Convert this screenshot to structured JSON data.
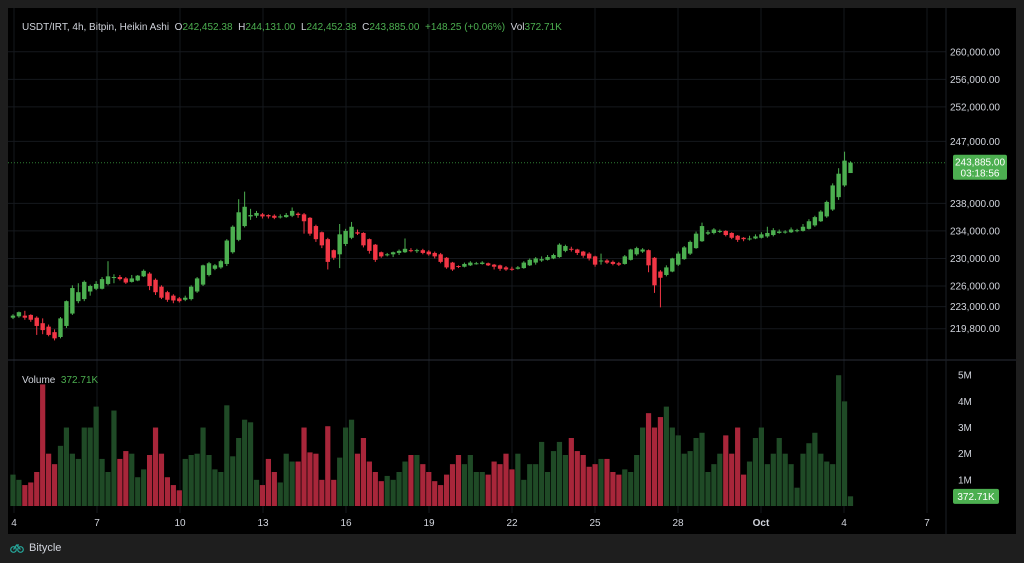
{
  "header": {
    "symbol": "USDT/IRT, 4h, Bitpin, Heikin Ashi",
    "open_label": "O",
    "open": "242,452.38",
    "high_label": "H",
    "high": "244,131.00",
    "low_label": "L",
    "low": "242,452.38",
    "close_label": "C",
    "close": "243,885.00",
    "change": "+148.25 (+0.06%)",
    "vol_label": "Vol",
    "vol": "372.71K"
  },
  "volume_pane": {
    "label": "Volume",
    "value": "372.71K"
  },
  "price_axis": [
    "260,000.00",
    "256,000.00",
    "252,000.00",
    "247,000.00",
    "238,000.00",
    "234,000.00",
    "230,000.00",
    "226,000.00",
    "223,000.00",
    "219,800.00"
  ],
  "last_price": {
    "price": "243,885.00",
    "countdown": "03:18:56"
  },
  "volume_axis": [
    "5M",
    "4M",
    "3M",
    "2M",
    "1M"
  ],
  "volume_badge": "372.71K",
  "time_axis": [
    "4",
    "7",
    "10",
    "13",
    "16",
    "19",
    "22",
    "25",
    "28",
    "Oct",
    "4",
    "7"
  ],
  "footer": {
    "brand": "Bitycle"
  },
  "colors": {
    "up": "#4caf50",
    "down": "#f23645",
    "vol_up": "#1f4a26",
    "vol_down": "#a8263a",
    "background": "#000000"
  },
  "chart_data": {
    "type": "candlestick",
    "style": "Heikin Ashi",
    "interval": "4h",
    "y_range": [
      217000,
      262000
    ],
    "volume_range": [
      0,
      5200000
    ],
    "x_ticks": [
      "4",
      "7",
      "10",
      "13",
      "16",
      "19",
      "22",
      "25",
      "28",
      "Oct",
      "4",
      "7"
    ],
    "candles": [
      [
        221400,
        221700,
        221200,
        221900,
        1200000
      ],
      [
        221600,
        222200,
        221400,
        222300,
        1000000
      ],
      [
        221700,
        221400,
        221100,
        222400,
        800000
      ],
      [
        221800,
        221100,
        220800,
        221900,
        900000
      ],
      [
        221400,
        220200,
        218900,
        221600,
        1300000
      ],
      [
        220600,
        219600,
        219000,
        221300,
        4650000
      ],
      [
        220100,
        218900,
        218700,
        220400,
        2000000
      ],
      [
        219300,
        218400,
        218100,
        219700,
        1600000
      ],
      [
        218600,
        221300,
        218400,
        221500,
        2300000
      ],
      [
        220200,
        223800,
        219900,
        223900,
        3000000
      ],
      [
        222000,
        225700,
        221800,
        226100,
        2000000
      ],
      [
        223800,
        225100,
        223500,
        226400,
        1800000
      ],
      [
        224100,
        226600,
        223800,
        226800,
        3000000
      ],
      [
        225200,
        226000,
        224600,
        226200,
        3000000
      ],
      [
        225600,
        226300,
        225400,
        226700,
        3800000
      ],
      [
        225600,
        227000,
        225500,
        227300,
        1800000
      ],
      [
        226300,
        227400,
        226100,
        229600,
        1300000
      ],
      [
        227300,
        227300,
        226400,
        227700,
        3650000
      ],
      [
        227300,
        227000,
        226800,
        227600,
        1800000
      ],
      [
        227100,
        226500,
        226300,
        227300,
        2100000
      ],
      [
        226600,
        227100,
        226500,
        227600,
        2000000
      ],
      [
        226800,
        227500,
        226700,
        227600,
        1100000
      ],
      [
        227400,
        228200,
        227300,
        228400,
        1400000
      ],
      [
        227800,
        226000,
        225400,
        228000,
        1950000
      ],
      [
        226900,
        225100,
        224700,
        227100,
        3000000
      ],
      [
        225900,
        224300,
        224100,
        226100,
        2000000
      ],
      [
        225100,
        224000,
        223700,
        225300,
        1100000
      ],
      [
        224600,
        223900,
        223500,
        224800,
        800000
      ],
      [
        224200,
        223800,
        223600,
        224400,
        600000
      ],
      [
        224000,
        224300,
        223800,
        224600,
        1800000
      ],
      [
        224100,
        225900,
        223900,
        226100,
        1950000
      ],
      [
        225200,
        227100,
        225000,
        227300,
        2000000
      ],
      [
        226200,
        229000,
        226000,
        229100,
        3000000
      ],
      [
        227600,
        229300,
        227400,
        229500,
        1950000
      ],
      [
        228500,
        229000,
        228300,
        229200,
        1400000
      ],
      [
        228700,
        229600,
        228500,
        229800,
        1300000
      ],
      [
        229200,
        232600,
        228900,
        232800,
        3850000
      ],
      [
        230900,
        234600,
        230700,
        234800,
        1900000
      ],
      [
        232700,
        236700,
        232500,
        238600,
        2600000
      ],
      [
        234700,
        237500,
        234500,
        239700,
        3300000
      ],
      [
        236100,
        236300,
        235600,
        237200,
        3200000
      ],
      [
        236200,
        236600,
        235900,
        236900,
        1000000
      ],
      [
        236400,
        236100,
        235800,
        236600,
        800000
      ],
      [
        236300,
        236100,
        235800,
        236400,
        1800000
      ],
      [
        236200,
        235900,
        235700,
        236400,
        1300000
      ],
      [
        236000,
        236100,
        235800,
        236400,
        900000
      ],
      [
        236000,
        236300,
        235900,
        236600,
        2000000
      ],
      [
        236200,
        236900,
        236000,
        237400,
        1700000
      ],
      [
        236500,
        236300,
        235900,
        236700,
        1700000
      ],
      [
        236400,
        235400,
        233600,
        236600,
        3000000
      ],
      [
        235900,
        233600,
        233300,
        236000,
        2050000
      ],
      [
        234700,
        232800,
        232400,
        234900,
        2000000
      ],
      [
        233800,
        231900,
        231500,
        233900,
        1000000
      ],
      [
        232800,
        229500,
        228400,
        233000,
        3050000
      ],
      [
        231200,
        230100,
        229800,
        231300,
        1000000
      ],
      [
        230600,
        233500,
        228600,
        235000,
        1850000
      ],
      [
        232100,
        234000,
        231800,
        234300,
        3000000
      ],
      [
        233000,
        234600,
        232800,
        235300,
        3300000
      ],
      [
        233800,
        233600,
        233400,
        234200,
        2000000
      ],
      [
        233700,
        231900,
        231600,
        233800,
        2600000
      ],
      [
        232800,
        231100,
        230700,
        232900,
        1700000
      ],
      [
        232000,
        229800,
        229500,
        232100,
        1300000
      ],
      [
        230900,
        230300,
        230100,
        231000,
        950000
      ],
      [
        230600,
        230600,
        230300,
        230800,
        1150000
      ],
      [
        230600,
        230900,
        230200,
        231000,
        1000000
      ],
      [
        230800,
        231100,
        230500,
        231300,
        1300000
      ],
      [
        230900,
        231400,
        230800,
        232900,
        1700000
      ],
      [
        231200,
        231100,
        230900,
        231500,
        1950000
      ],
      [
        231100,
        231200,
        230800,
        231400,
        1950000
      ],
      [
        231200,
        230800,
        230600,
        231400,
        1600000
      ],
      [
        231000,
        230600,
        230400,
        231200,
        1300000
      ],
      [
        230800,
        230300,
        230000,
        231000,
        950000
      ],
      [
        230600,
        229500,
        229300,
        230800,
        800000
      ],
      [
        230100,
        228700,
        228500,
        230200,
        1200000
      ],
      [
        229400,
        228400,
        228200,
        229500,
        1600000
      ],
      [
        228900,
        228800,
        228600,
        229000,
        1950000
      ],
      [
        228800,
        229200,
        228700,
        229400,
        1600000
      ],
      [
        229000,
        229400,
        228900,
        229600,
        1950000
      ],
      [
        229200,
        229300,
        229100,
        229500,
        1300000
      ],
      [
        229200,
        229400,
        229100,
        229600,
        1300000
      ],
      [
        229300,
        229000,
        228900,
        229400,
        1200000
      ],
      [
        229100,
        228800,
        228400,
        229200,
        1700000
      ],
      [
        229000,
        228500,
        228200,
        229100,
        1600000
      ],
      [
        228700,
        228400,
        228200,
        228900,
        2000000
      ],
      [
        228500,
        228400,
        228200,
        228800,
        1400000
      ],
      [
        228500,
        228700,
        228400,
        228900,
        2000000
      ],
      [
        228600,
        229400,
        228500,
        229600,
        1000000
      ],
      [
        229000,
        229800,
        228900,
        230000,
        1600000
      ],
      [
        229400,
        230000,
        229100,
        230200,
        1600000
      ],
      [
        229700,
        229900,
        229500,
        230300,
        2450000
      ],
      [
        229800,
        230200,
        229700,
        230500,
        1300000
      ],
      [
        230000,
        230500,
        229900,
        230700,
        2100000
      ],
      [
        230200,
        232000,
        230100,
        232200,
        2450000
      ],
      [
        231100,
        231800,
        230900,
        232000,
        1950000
      ],
      [
        231400,
        231300,
        231000,
        231700,
        2600000
      ],
      [
        231300,
        230800,
        230500,
        231400,
        2100000
      ],
      [
        231000,
        230400,
        230100,
        231100,
        1950000
      ],
      [
        230700,
        230000,
        229700,
        230900,
        1500000
      ],
      [
        230300,
        229100,
        228800,
        230400,
        1600000
      ],
      [
        229700,
        229700,
        229100,
        230700,
        1800000
      ],
      [
        229700,
        229400,
        229200,
        229900,
        1800000
      ],
      [
        229500,
        229200,
        229000,
        229700,
        1300000
      ],
      [
        229300,
        229100,
        228900,
        229500,
        1200000
      ],
      [
        229200,
        230300,
        229100,
        230500,
        1400000
      ],
      [
        229800,
        231300,
        229700,
        231400,
        1300000
      ],
      [
        230600,
        231500,
        230400,
        231700,
        1950000
      ],
      [
        231000,
        231300,
        230800,
        231500,
        3000000
      ],
      [
        231200,
        229000,
        228000,
        231300,
        3550000
      ],
      [
        230100,
        226100,
        225000,
        230200,
        3000000
      ],
      [
        228100,
        227200,
        222900,
        228300,
        3400000
      ],
      [
        227600,
        228700,
        227400,
        229000,
        3800000
      ],
      [
        228100,
        230000,
        228000,
        230100,
        3000000
      ],
      [
        229100,
        230700,
        228900,
        231000,
        2700000
      ],
      [
        229900,
        231600,
        229800,
        231800,
        2000000
      ],
      [
        230700,
        232400,
        230500,
        232600,
        2100000
      ],
      [
        231500,
        233600,
        231400,
        233900,
        2600000
      ],
      [
        232500,
        234700,
        232400,
        235200,
        2800000
      ],
      [
        233600,
        233800,
        233400,
        234100,
        1300000
      ],
      [
        233700,
        234200,
        233500,
        234400,
        1600000
      ],
      [
        233900,
        234000,
        233700,
        234200,
        2000000
      ],
      [
        234000,
        233400,
        233200,
        234100,
        2700000
      ],
      [
        233700,
        233000,
        232800,
        233800,
        2000000
      ],
      [
        233300,
        232700,
        232400,
        233400,
        3000000
      ],
      [
        233000,
        232800,
        232500,
        233100,
        1200000
      ],
      [
        232900,
        232900,
        232600,
        233300,
        1700000
      ],
      [
        232900,
        233200,
        232800,
        233500,
        2600000
      ],
      [
        233000,
        233500,
        232900,
        233800,
        3000000
      ],
      [
        233200,
        233700,
        233000,
        234600,
        1600000
      ],
      [
        233400,
        234100,
        233200,
        234400,
        2000000
      ],
      [
        233700,
        233900,
        233600,
        234200,
        2600000
      ],
      [
        233800,
        233900,
        233600,
        234100,
        2000000
      ],
      [
        233800,
        234200,
        233700,
        234500,
        1600000
      ],
      [
        234000,
        234100,
        233800,
        234300,
        700000
      ],
      [
        234000,
        234600,
        233900,
        235000,
        2000000
      ],
      [
        234300,
        235400,
        234200,
        235700,
        2400000
      ],
      [
        234800,
        236000,
        234600,
        236200,
        2800000
      ],
      [
        235400,
        236800,
        235300,
        237000,
        2000000
      ],
      [
        236100,
        238200,
        235900,
        238400,
        1700000
      ],
      [
        237100,
        240600,
        236900,
        240900,
        1600000
      ],
      [
        238900,
        242300,
        238500,
        243100,
        5000000
      ],
      [
        240600,
        244200,
        240400,
        245500,
        4000000
      ],
      [
        242400,
        243900,
        242400,
        244100,
        370000
      ]
    ]
  }
}
